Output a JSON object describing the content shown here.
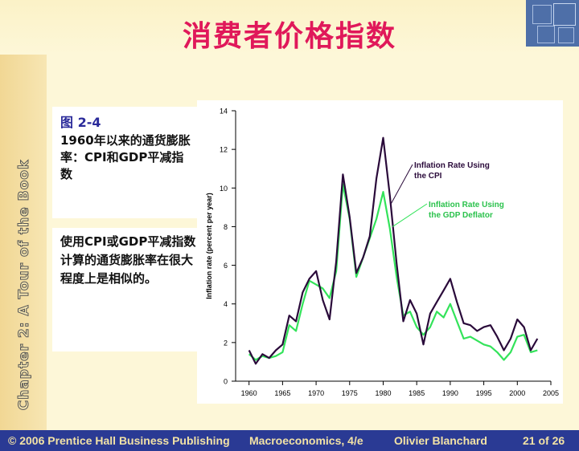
{
  "slide": {
    "title": "消费者价格指数",
    "side_label": "Chapter 2: A Tour of the Book",
    "figure_number": "图 2-4",
    "figure_caption": "1960年以来的通货膨胀率：CPI和GDP平减指数",
    "figure_note": "使用CPI或GDP平减指数计算的通货膨胀率在很大程度上是相似的。"
  },
  "footer": {
    "copyright": "© 2006 Prentice Hall Business Publishing",
    "book": "Macroeconomics, 4/e",
    "author": "Olivier Blanchard",
    "page": "21 of 26"
  },
  "colors": {
    "title": "#e0185a",
    "cpi_line": "#2a0a3a",
    "deflator_line": "#33e35a",
    "footer_bg": "#2a3a94"
  },
  "chart_data": {
    "type": "line",
    "title": "",
    "xlabel": "",
    "ylabel": "Inflation rate (percent per year)",
    "xlim": [
      1958,
      2005
    ],
    "ylim": [
      0,
      14
    ],
    "xticks": [
      "1960",
      "1965",
      "1970",
      "1975",
      "1980",
      "1985",
      "1990",
      "1995",
      "2000",
      "2005"
    ],
    "yticks": [
      "0",
      "2",
      "4",
      "6",
      "8",
      "10",
      "12",
      "14"
    ],
    "grid": false,
    "x": [
      1960,
      1961,
      1962,
      1963,
      1964,
      1965,
      1966,
      1967,
      1968,
      1969,
      1970,
      1971,
      1972,
      1973,
      1974,
      1975,
      1976,
      1977,
      1978,
      1979,
      1980,
      1981,
      1982,
      1983,
      1984,
      1985,
      1986,
      1987,
      1988,
      1989,
      1990,
      1991,
      1992,
      1993,
      1994,
      1995,
      1996,
      1997,
      1998,
      1999,
      2000,
      2001,
      2002,
      2003
    ],
    "series": [
      {
        "name": "Inflation Rate Using the CPI",
        "label_lines": [
          "Inflation Rate Using",
          "the CPI"
        ],
        "values": [
          1.6,
          0.9,
          1.4,
          1.2,
          1.6,
          1.9,
          3.4,
          3.1,
          4.6,
          5.3,
          5.7,
          4.2,
          3.2,
          6.2,
          10.7,
          8.5,
          5.6,
          6.4,
          7.5,
          10.5,
          12.6,
          9.6,
          6.1,
          3.1,
          4.2,
          3.5,
          1.9,
          3.5,
          4.1,
          4.7,
          5.3,
          4.1,
          3.0,
          2.9,
          2.6,
          2.8,
          2.9,
          2.3,
          1.6,
          2.2,
          3.2,
          2.8,
          1.6,
          2.2
        ]
      },
      {
        "name": "Inflation Rate Using the GDP Deflator",
        "label_lines": [
          "Inflation Rate Using",
          "the GDP Deflator"
        ],
        "values": [
          1.4,
          1.1,
          1.3,
          1.2,
          1.3,
          1.5,
          2.9,
          2.6,
          4.0,
          5.2,
          5.0,
          4.8,
          4.3,
          5.7,
          10.2,
          8.4,
          5.4,
          6.4,
          7.4,
          8.4,
          9.8,
          7.9,
          5.4,
          3.4,
          3.6,
          2.8,
          2.4,
          2.8,
          3.6,
          3.3,
          4.0,
          3.1,
          2.2,
          2.3,
          2.1,
          1.9,
          1.8,
          1.5,
          1.1,
          1.5,
          2.3,
          2.4,
          1.5,
          1.6
        ]
      }
    ]
  }
}
